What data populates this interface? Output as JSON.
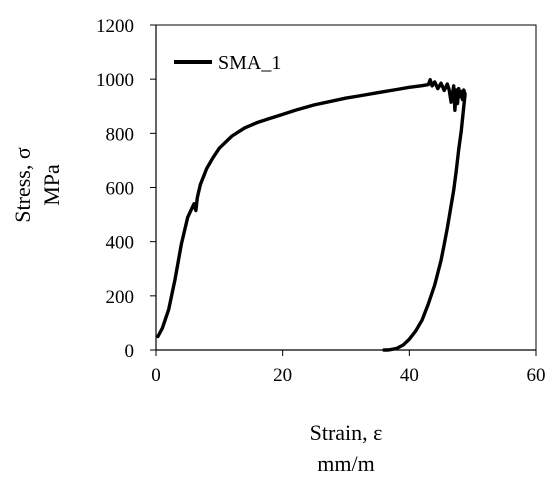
{
  "chart_data": {
    "type": "line",
    "title": "",
    "xlabel": "Strain, ε",
    "xunit": "mm/m",
    "ylabel": "Stress, σ",
    "yunit": "MPa",
    "xlim": [
      0,
      60
    ],
    "ylim": [
      0,
      1200
    ],
    "x_ticks": [
      "0",
      "20",
      "40",
      "60"
    ],
    "y_ticks": [
      "0",
      "200",
      "400",
      "600",
      "800",
      "1000",
      "1200"
    ],
    "grid": false,
    "legend_position": "top-left",
    "series": [
      {
        "name": "SMA_1",
        "color": "#000000",
        "x": [
          0.3,
          1,
          2,
          3,
          4,
          5,
          6,
          6.3,
          6.5,
          6.7,
          7,
          8,
          9,
          10,
          12,
          14,
          16,
          18,
          20,
          22,
          25,
          28,
          30,
          32,
          35,
          38,
          40,
          42,
          43,
          43.3,
          43.6,
          44,
          44.5,
          45,
          45.5,
          46,
          46.3,
          46.6,
          47,
          47.2,
          47.4,
          47.6,
          47.8,
          48,
          48.2,
          48.4,
          48.6,
          48.8,
          48.6,
          48.2,
          47.8,
          47.4,
          47,
          46.5,
          46,
          45.5,
          45,
          44,
          43,
          42,
          41,
          40,
          39,
          38,
          37,
          36.5,
          36
        ],
        "y": [
          50,
          80,
          150,
          260,
          390,
          490,
          540,
          515,
          560,
          580,
          610,
          670,
          710,
          745,
          790,
          820,
          840,
          855,
          870,
          885,
          905,
          920,
          930,
          938,
          950,
          962,
          970,
          976,
          980,
          998,
          975,
          990,
          965,
          985,
          958,
          982,
          960,
          915,
          975,
          885,
          960,
          910,
          965,
          935,
          955,
          925,
          960,
          945,
          900,
          810,
          740,
          660,
          590,
          520,
          450,
          390,
          330,
          240,
          170,
          110,
          70,
          40,
          18,
          6,
          1,
          0,
          0
        ]
      }
    ]
  }
}
